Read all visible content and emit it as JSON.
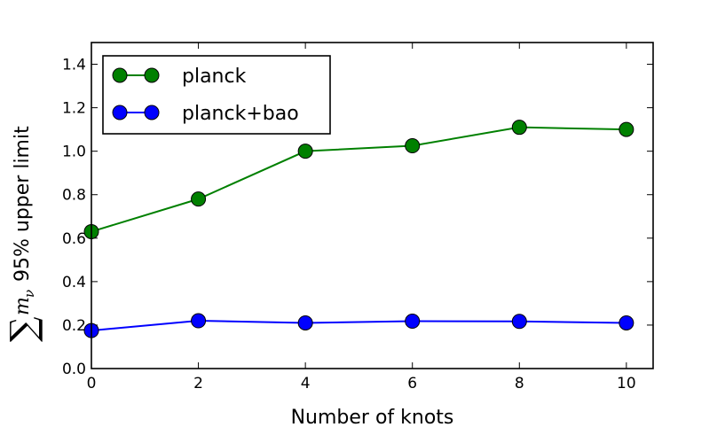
{
  "chart_data": {
    "type": "line",
    "xlabel": "Number of knots",
    "ylabel": {
      "sum_symbol": "∑",
      "variable": "m",
      "subscript": "ν",
      "text": "95% upper limit"
    },
    "xlim": [
      0,
      10.5
    ],
    "ylim": [
      0,
      1.5
    ],
    "x_ticks": [
      "0",
      "2",
      "4",
      "6",
      "8",
      "10"
    ],
    "y_ticks": [
      "0.0",
      "0.2",
      "0.4",
      "0.6",
      "0.8",
      "1.0",
      "1.2",
      "1.4"
    ],
    "grid": false,
    "legend_position": "top-left",
    "x": [
      0,
      2,
      4,
      6,
      8,
      10
    ],
    "series": [
      {
        "name": "planck",
        "color": "#008000",
        "values": [
          0.63,
          0.78,
          1.0,
          1.025,
          1.11,
          1.1
        ]
      },
      {
        "name": "planck+bao",
        "color": "#0000ff",
        "values": [
          0.175,
          0.22,
          0.21,
          0.218,
          0.217,
          0.21
        ]
      }
    ]
  }
}
